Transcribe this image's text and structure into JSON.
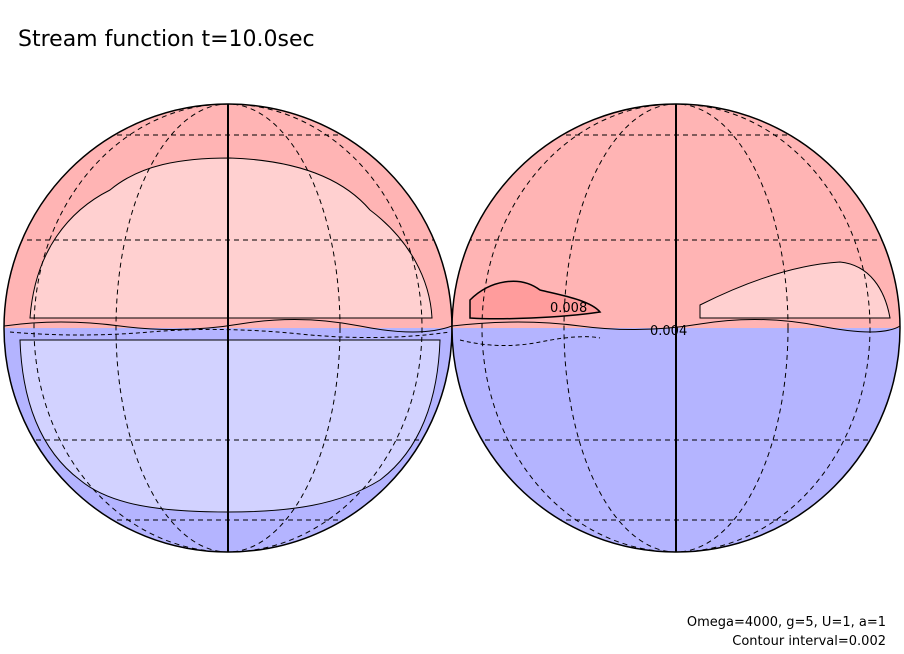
{
  "title": "Stream function t=10.0sec",
  "contour_labels": [
    "0.008",
    "0.004"
  ],
  "footer": [
    "Omega=4000, g=5, U=1, a=1",
    "Contour interval=0.002"
  ]
}
